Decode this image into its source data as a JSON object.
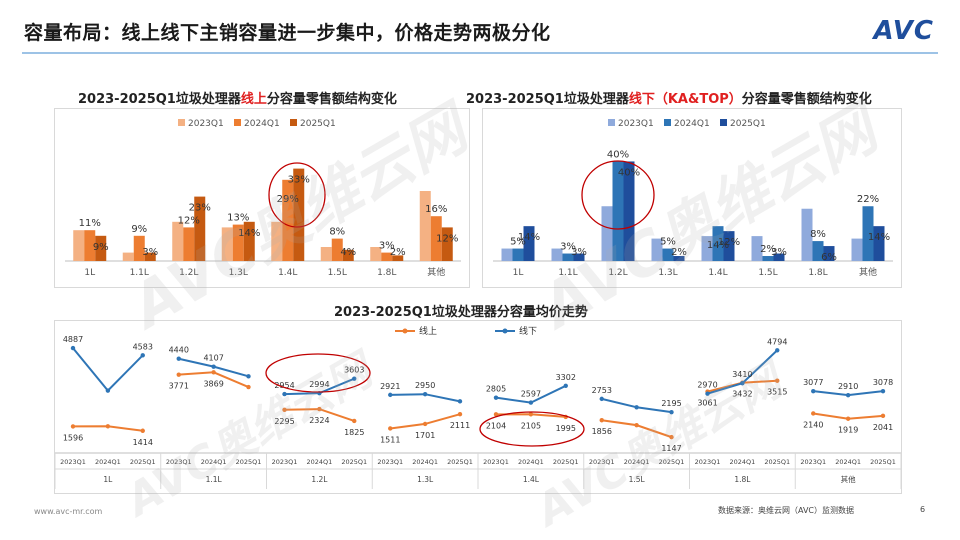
{
  "header": {
    "title": "容量布局：线上线下主销容量进一步集中，价格走势两极分化",
    "logo": "AVC"
  },
  "chart1": {
    "title_prefix": "2023-2025Q1垃圾处理器",
    "title_highlight": "线上",
    "title_suffix": "分容量零售额结构变化"
  },
  "chart2": {
    "title_prefix": "2023-2025Q1垃圾处理器",
    "title_highlight": "线下（KA&TOP）",
    "title_suffix": "分容量零售额结构变化"
  },
  "chart3": {
    "title": "2023-2025Q1垃圾处理器分容量均价走势"
  },
  "footer": {
    "website": "www.avc-mr.com",
    "source": "数据来源：奥维云网（AVC）监测数据",
    "page": "6"
  },
  "watermark": {
    "text": "AVC奥维云网",
    "sub": "ALL VIEW CLOUD"
  },
  "chart_data": [
    {
      "type": "bar",
      "categories": [
        "1L",
        "1.1L",
        "1.2L",
        "1.3L",
        "1.4L",
        "1.5L",
        "1.8L",
        "其他"
      ],
      "series": [
        {
          "name": "2023Q1",
          "color": "#f4b183",
          "values": [
            11,
            3,
            14,
            12,
            14,
            5,
            5,
            25
          ]
        },
        {
          "name": "2024Q1",
          "color": "#ed7d31",
          "values": [
            11,
            9,
            12,
            13,
            29,
            8,
            3,
            16
          ]
        },
        {
          "name": "2025Q1",
          "color": "#c55a11",
          "values": [
            9,
            3,
            23,
            14,
            33,
            4,
            2,
            12
          ]
        }
      ],
      "labels": [
        {
          "cat": 0,
          "series": 1,
          "text": "11%"
        },
        {
          "cat": 0,
          "series": 2,
          "text": "9%"
        },
        {
          "cat": 1,
          "series": 1,
          "text": "9%"
        },
        {
          "cat": 1,
          "series": 2,
          "text": "3%"
        },
        {
          "cat": 2,
          "series": 1,
          "text": "12%"
        },
        {
          "cat": 2,
          "series": 2,
          "text": "23%"
        },
        {
          "cat": 3,
          "series": 1,
          "text": "13%"
        },
        {
          "cat": 3,
          "series": 2,
          "text": "14%"
        },
        {
          "cat": 4,
          "series": 1,
          "text": "29%"
        },
        {
          "cat": 4,
          "series": 2,
          "text": "33%"
        },
        {
          "cat": 5,
          "series": 1,
          "text": "8%"
        },
        {
          "cat": 5,
          "series": 2,
          "text": "4%"
        },
        {
          "cat": 6,
          "series": 1,
          "text": "3%"
        },
        {
          "cat": 6,
          "series": 2,
          "text": "2%"
        },
        {
          "cat": 7,
          "series": 1,
          "text": "16%"
        },
        {
          "cat": 7,
          "series": 2,
          "text": "12%"
        }
      ],
      "ylim": [
        0,
        40
      ]
    },
    {
      "type": "bar",
      "categories": [
        "1L",
        "1.1L",
        "1.2L",
        "1.3L",
        "1.4L",
        "1.5L",
        "1.8L",
        "其他"
      ],
      "series": [
        {
          "name": "2023Q1",
          "color": "#8faadc",
          "values": [
            5,
            5,
            22,
            9,
            10,
            10,
            21,
            9
          ]
        },
        {
          "name": "2024Q1",
          "color": "#2e75b6",
          "values": [
            5,
            3,
            40,
            5,
            14,
            2,
            8,
            22
          ]
        },
        {
          "name": "2025Q1",
          "color": "#1f4e9c",
          "values": [
            14,
            3,
            40,
            2,
            12,
            3,
            6,
            14
          ]
        }
      ],
      "labels": [
        {
          "cat": 0,
          "series": 1,
          "text": "5%"
        },
        {
          "cat": 0,
          "series": 2,
          "text": "14%"
        },
        {
          "cat": 1,
          "series": 1,
          "text": "3%"
        },
        {
          "cat": 1,
          "series": 2,
          "text": "3%"
        },
        {
          "cat": 2,
          "series": 1,
          "text": "40%"
        },
        {
          "cat": 2,
          "series": 2,
          "text": "40%"
        },
        {
          "cat": 3,
          "series": 1,
          "text": "5%"
        },
        {
          "cat": 3,
          "series": 2,
          "text": "2%"
        },
        {
          "cat": 4,
          "series": 1,
          "text": "14%"
        },
        {
          "cat": 4,
          "series": 2,
          "text": "12%"
        },
        {
          "cat": 5,
          "series": 1,
          "text": "2%"
        },
        {
          "cat": 5,
          "series": 2,
          "text": "3%"
        },
        {
          "cat": 6,
          "series": 1,
          "text": "8%"
        },
        {
          "cat": 6,
          "series": 2,
          "text": "6%"
        },
        {
          "cat": 7,
          "series": 1,
          "text": "22%"
        },
        {
          "cat": 7,
          "series": 2,
          "text": "14%"
        }
      ],
      "ylim": [
        0,
        45
      ]
    },
    {
      "type": "line",
      "groups": [
        "1L",
        "1.1L",
        "1.2L",
        "1.3L",
        "1.4L",
        "1.5L",
        "1.8L",
        "其他"
      ],
      "periods": [
        "2023Q1",
        "2024Q1",
        "2025Q1"
      ],
      "series": [
        {
          "name": "线上",
          "color": "#ed7d31",
          "values": [
            [
              1596,
              1602,
              1414
            ],
            [
              3771,
              3869,
              3250
            ],
            [
              2295,
              2324,
              1825
            ],
            [
              1511,
              1701,
              2111
            ],
            [
              2104,
              2105,
              1995
            ],
            [
              1856,
              1650,
              1147
            ],
            [
              3061,
              3432,
              3515
            ],
            [
              2140,
              1919,
              2041
            ]
          ]
        },
        {
          "name": "线下",
          "color": "#2e75b6",
          "values": [
            [
              4887,
              3100,
              4583
            ],
            [
              4440,
              4107,
              3700
            ],
            [
              2954,
              2994,
              3603
            ],
            [
              2921,
              2950,
              2650
            ],
            [
              2805,
              2597,
              3302
            ],
            [
              2753,
              2400,
              2195
            ],
            [
              2970,
              3410,
              4794
            ],
            [
              3077,
              2910,
              3078
            ]
          ]
        }
      ],
      "value_labels": [
        {
          "group": 0,
          "series": 0,
          "point": 0,
          "text": "1596"
        },
        {
          "group": 0,
          "series": 0,
          "point": 2,
          "text": "1414"
        },
        {
          "group": 0,
          "series": 1,
          "point": 0,
          "text": "4887"
        },
        {
          "group": 0,
          "series": 1,
          "point": 2,
          "text": "4583"
        },
        {
          "group": 1,
          "series": 0,
          "point": 0,
          "text": "3771"
        },
        {
          "group": 1,
          "series": 0,
          "point": 1,
          "text": "3869"
        },
        {
          "group": 1,
          "series": 1,
          "point": 0,
          "text": "4440"
        },
        {
          "group": 1,
          "series": 1,
          "point": 1,
          "text": "4107"
        },
        {
          "group": 2,
          "series": 0,
          "point": 0,
          "text": "2295"
        },
        {
          "group": 2,
          "series": 0,
          "point": 1,
          "text": "2324"
        },
        {
          "group": 2,
          "series": 0,
          "point": 2,
          "text": "1825"
        },
        {
          "group": 2,
          "series": 1,
          "point": 0,
          "text": "2954"
        },
        {
          "group": 2,
          "series": 1,
          "point": 1,
          "text": "2994"
        },
        {
          "group": 2,
          "series": 1,
          "point": 2,
          "text": "3603"
        },
        {
          "group": 3,
          "series": 0,
          "point": 0,
          "text": "1511"
        },
        {
          "group": 3,
          "series": 0,
          "point": 1,
          "text": "1701"
        },
        {
          "group": 3,
          "series": 0,
          "point": 2,
          "text": "2111"
        },
        {
          "group": 3,
          "series": 1,
          "point": 0,
          "text": "2921"
        },
        {
          "group": 3,
          "series": 1,
          "point": 1,
          "text": "2950"
        },
        {
          "group": 4,
          "series": 0,
          "point": 0,
          "text": "2104"
        },
        {
          "group": 4,
          "series": 0,
          "point": 1,
          "text": "2105"
        },
        {
          "group": 4,
          "series": 0,
          "point": 2,
          "text": "1995"
        },
        {
          "group": 4,
          "series": 1,
          "point": 0,
          "text": "2805"
        },
        {
          "group": 4,
          "series": 1,
          "point": 1,
          "text": "2597"
        },
        {
          "group": 4,
          "series": 1,
          "point": 2,
          "text": "3302"
        },
        {
          "group": 5,
          "series": 0,
          "point": 0,
          "text": "1856"
        },
        {
          "group": 5,
          "series": 0,
          "point": 2,
          "text": "1147"
        },
        {
          "group": 5,
          "series": 1,
          "point": 0,
          "text": "2753"
        },
        {
          "group": 5,
          "series": 1,
          "point": 2,
          "text": "2195"
        },
        {
          "group": 6,
          "series": 0,
          "point": 0,
          "text": "3061"
        },
        {
          "group": 6,
          "series": 0,
          "point": 1,
          "text": "3432"
        },
        {
          "group": 6,
          "series": 0,
          "point": 2,
          "text": "3515"
        },
        {
          "group": 6,
          "series": 1,
          "point": 0,
          "text": "2970"
        },
        {
          "group": 6,
          "series": 1,
          "point": 1,
          "text": "3410"
        },
        {
          "group": 6,
          "series": 1,
          "point": 2,
          "text": "4794"
        },
        {
          "group": 7,
          "series": 0,
          "point": 0,
          "text": "2140"
        },
        {
          "group": 7,
          "series": 0,
          "point": 1,
          "text": "1919"
        },
        {
          "group": 7,
          "series": 0,
          "point": 2,
          "text": "2041"
        },
        {
          "group": 7,
          "series": 1,
          "point": 0,
          "text": "3077"
        },
        {
          "group": 7,
          "series": 1,
          "point": 1,
          "text": "2910"
        },
        {
          "group": 7,
          "series": 1,
          "point": 2,
          "text": "3078"
        }
      ],
      "period_labels": [
        "2023Q1",
        "2024Q1",
        "2025Q1"
      ],
      "ylim": [
        900,
        5100
      ]
    }
  ]
}
